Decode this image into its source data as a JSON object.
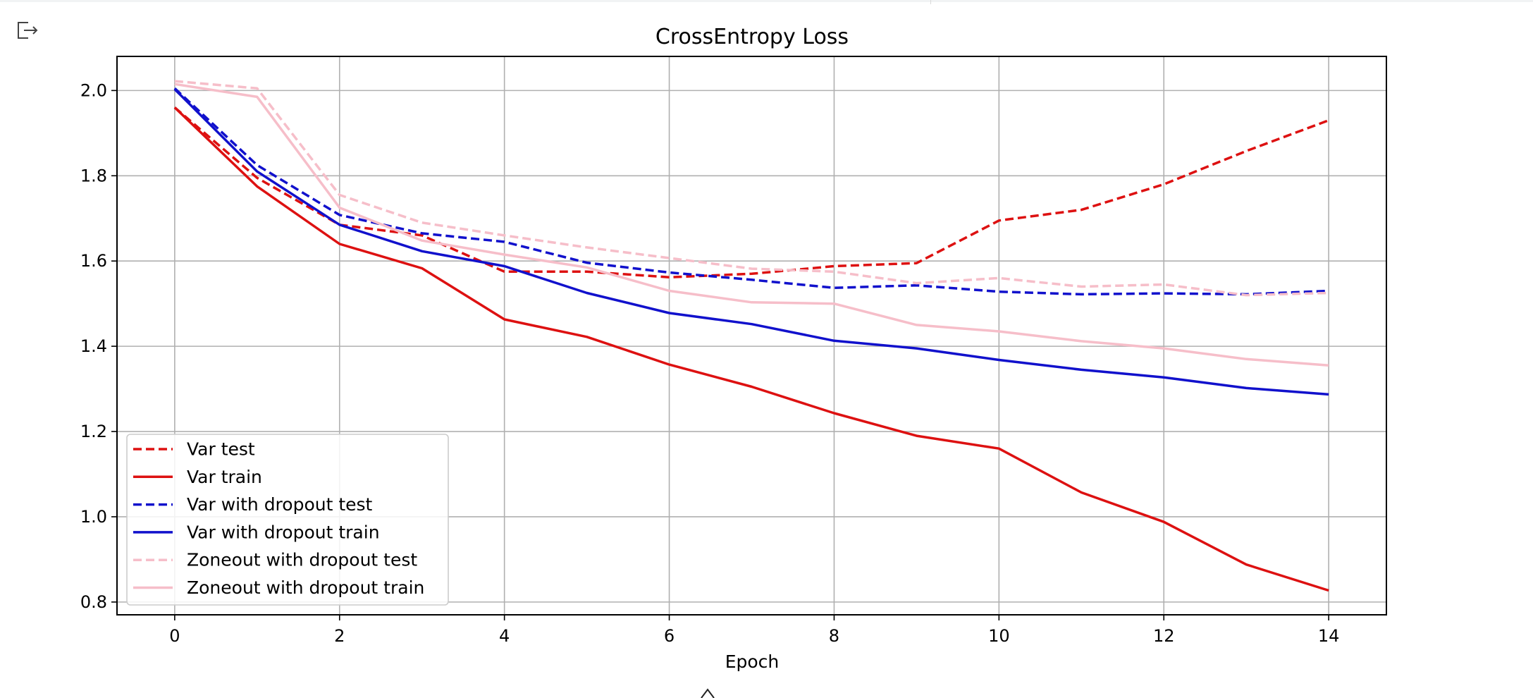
{
  "output_icon": "output-redirect-icon",
  "chart_data": {
    "type": "line",
    "title": "CrossEntropy Loss",
    "xlabel": "Epoch",
    "ylabel": "",
    "xlim": [
      -0.7,
      14.7
    ],
    "ylim": [
      0.77,
      2.08
    ],
    "x_ticks": [
      0,
      2,
      4,
      6,
      8,
      10,
      12,
      14
    ],
    "y_ticks": [
      0.8,
      1.0,
      1.2,
      1.4,
      1.6,
      1.8,
      2.0
    ],
    "grid": true,
    "legend": "lower-left",
    "x": [
      0,
      1,
      2,
      3,
      4,
      5,
      6,
      7,
      8,
      9,
      10,
      11,
      12,
      13,
      14
    ],
    "series": [
      {
        "name": "Var test",
        "color": "#dd1111",
        "dash": "dashed",
        "values": [
          1.96,
          1.795,
          1.685,
          1.66,
          1.575,
          1.575,
          1.562,
          1.57,
          1.588,
          1.595,
          1.695,
          1.72,
          1.78,
          1.858,
          1.93
        ]
      },
      {
        "name": "Var train",
        "color": "#dd1111",
        "dash": "solid",
        "values": [
          1.96,
          1.775,
          1.64,
          1.583,
          1.463,
          1.422,
          1.357,
          1.305,
          1.243,
          1.19,
          1.16,
          1.057,
          0.988,
          0.888,
          0.827
        ]
      },
      {
        "name": "Var with dropout test",
        "color": "#1111cc",
        "dash": "dashed",
        "values": [
          2.005,
          1.825,
          1.708,
          1.665,
          1.645,
          1.596,
          1.573,
          1.556,
          1.537,
          1.543,
          1.528,
          1.522,
          1.524,
          1.522,
          1.53
        ]
      },
      {
        "name": "Var with dropout train",
        "color": "#1111cc",
        "dash": "solid",
        "values": [
          2.003,
          1.81,
          1.685,
          1.623,
          1.588,
          1.525,
          1.478,
          1.452,
          1.413,
          1.395,
          1.368,
          1.345,
          1.327,
          1.302,
          1.287
        ]
      },
      {
        "name": "Zoneout with dropout test",
        "color": "#f6bec9",
        "dash": "dashed",
        "values": [
          2.022,
          2.005,
          1.755,
          1.69,
          1.66,
          1.632,
          1.607,
          1.582,
          1.575,
          1.548,
          1.56,
          1.54,
          1.545,
          1.52,
          1.525
        ]
      },
      {
        "name": "Zoneout with dropout train",
        "color": "#f6bec9",
        "dash": "solid",
        "values": [
          2.015,
          1.985,
          1.725,
          1.648,
          1.615,
          1.585,
          1.53,
          1.503,
          1.5,
          1.45,
          1.435,
          1.412,
          1.395,
          1.37,
          1.355
        ]
      }
    ]
  }
}
